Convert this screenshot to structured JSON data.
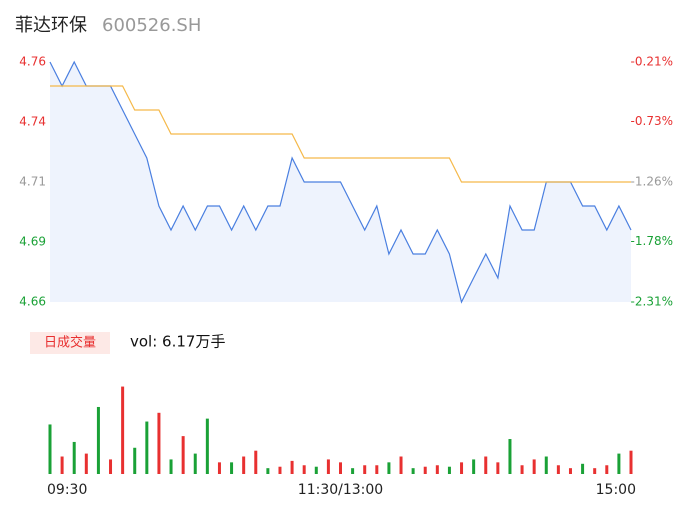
{
  "header": {
    "name": "菲达环保",
    "code": "600526.SH"
  },
  "chart_data": [
    {
      "type": "line",
      "x": [
        0,
        5,
        10,
        15,
        20,
        25,
        30,
        35,
        40,
        45,
        50,
        55,
        60,
        65,
        70,
        75,
        80,
        85,
        90,
        95,
        100,
        105,
        110,
        115,
        120,
        125,
        130,
        135,
        140,
        145,
        150,
        155,
        160,
        165,
        170,
        175,
        180,
        185,
        190,
        195,
        200,
        205,
        210,
        215,
        220,
        225,
        230,
        235,
        240
      ],
      "xlim": [
        0,
        240
      ],
      "xticks": [
        {
          "value": 0,
          "label": "09:30"
        },
        {
          "value": 120,
          "label": "11:30/13:00"
        },
        {
          "value": 240,
          "label": "15:00"
        }
      ],
      "ylim": [
        4.66,
        4.76
      ],
      "yticks": [
        {
          "value": 4.76,
          "label": "4.76"
        },
        {
          "value": 4.735,
          "label": "4.74"
        },
        {
          "value": 4.71,
          "label": "4.71"
        },
        {
          "value": 4.685,
          "label": "4.69"
        },
        {
          "value": 4.66,
          "label": "4.66"
        }
      ],
      "ytick_colors": [
        "#e83030",
        "#e83030",
        "#999999",
        "#1aa136",
        "#1aa136"
      ],
      "y2lim": [
        -2.31,
        -0.21
      ],
      "y2ticks": [
        {
          "value": -0.21,
          "label": "-0.21%"
        },
        {
          "value": -0.73,
          "label": "-0.73%"
        },
        {
          "value": -1.26,
          "label": "-1.26%"
        },
        {
          "value": -1.78,
          "label": "-1.78%"
        },
        {
          "value": -2.31,
          "label": "-2.31%"
        }
      ],
      "area_fill": "#eef3fd",
      "series": [
        {
          "name": "price",
          "color": "#4a7fe0",
          "values": [
            4.76,
            4.75,
            4.76,
            4.75,
            4.75,
            4.75,
            4.74,
            4.73,
            4.72,
            4.7,
            4.69,
            4.7,
            4.69,
            4.7,
            4.7,
            4.69,
            4.7,
            4.69,
            4.7,
            4.7,
            4.72,
            4.71,
            4.71,
            4.71,
            4.71,
            4.7,
            4.69,
            4.7,
            4.68,
            4.69,
            4.68,
            4.68,
            4.69,
            4.68,
            4.66,
            4.67,
            4.68,
            4.67,
            4.7,
            4.69,
            4.69,
            4.71,
            4.71,
            4.71,
            4.7,
            4.7,
            4.69,
            4.7,
            4.69
          ]
        },
        {
          "name": "average",
          "color": "#f5b94a",
          "values": [
            4.75,
            4.75,
            4.75,
            4.75,
            4.75,
            4.75,
            4.75,
            4.74,
            4.74,
            4.74,
            4.73,
            4.73,
            4.73,
            4.73,
            4.73,
            4.73,
            4.73,
            4.73,
            4.73,
            4.73,
            4.73,
            4.72,
            4.72,
            4.72,
            4.72,
            4.72,
            4.72,
            4.72,
            4.72,
            4.72,
            4.72,
            4.72,
            4.72,
            4.72,
            4.71,
            4.71,
            4.71,
            4.71,
            4.71,
            4.71,
            4.71,
            4.71,
            4.71,
            4.71,
            4.71,
            4.71,
            4.71,
            4.71,
            4.71
          ]
        }
      ]
    },
    {
      "type": "bar",
      "label": "日成交量",
      "summary": "vol: 6.17万手",
      "ylim": [
        0,
        3500
      ],
      "values": [
        1700,
        600,
        1100,
        700,
        2300,
        500,
        3000,
        900,
        1800,
        2100,
        500,
        1300,
        700,
        1900,
        400,
        400,
        600,
        800,
        200,
        250,
        450,
        300,
        250,
        500,
        400,
        200,
        300,
        300,
        400,
        600,
        200,
        250,
        300,
        250,
        400,
        500,
        600,
        400,
        1200,
        300,
        500,
        600,
        300,
        200,
        350,
        200,
        300,
        700,
        800
      ],
      "colors": [
        "#1aa136",
        "#e83030",
        "#1aa136",
        "#e83030",
        "#1aa136",
        "#e83030",
        "#e83030",
        "#1aa136",
        "#1aa136",
        "#e83030",
        "#1aa136",
        "#e83030",
        "#1aa136",
        "#1aa136",
        "#e83030",
        "#1aa136",
        "#e83030",
        "#e83030",
        "#1aa136",
        "#e83030",
        "#e83030",
        "#e83030",
        "#1aa136",
        "#e83030",
        "#e83030",
        "#1aa136",
        "#e83030",
        "#e83030",
        "#1aa136",
        "#e83030",
        "#1aa136",
        "#e83030",
        "#e83030",
        "#1aa136",
        "#e83030",
        "#1aa136",
        "#e83030",
        "#e83030",
        "#1aa136",
        "#e83030",
        "#e83030",
        "#1aa136",
        "#e83030",
        "#e83030",
        "#1aa136",
        "#e83030",
        "#e83030",
        "#1aa136",
        "#e83030"
      ]
    }
  ]
}
